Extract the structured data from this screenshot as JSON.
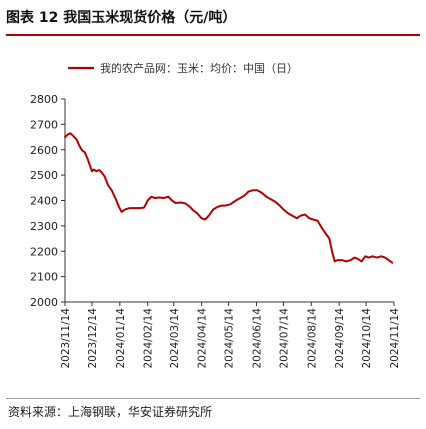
{
  "figure": {
    "title": "图表 12 我国玉米现货价格（元/吨）",
    "source": "资料来源：上海钢联，华安证券研究所"
  },
  "colors": {
    "line": "#b30000",
    "axis": "#333333",
    "text": "#222222"
  },
  "chart_data": {
    "type": "line",
    "title": "",
    "xlabel": "",
    "ylabel": "",
    "ylim": [
      2000,
      2800
    ],
    "yticks": [
      2000,
      2100,
      2200,
      2300,
      2400,
      2500,
      2600,
      2700,
      2800
    ],
    "grid": false,
    "legend_position": "top",
    "xticks": [
      "2023/11/14",
      "2023/12/14",
      "2024/01/14",
      "2024/02/14",
      "2024/03/14",
      "2024/04/14",
      "2024/05/14",
      "2024/06/14",
      "2024/07/14",
      "2024/08/14",
      "2024/09/14",
      "2024/10/14",
      "2024/11/14"
    ],
    "series": [
      {
        "name": "我的农产品网：玉米：均价：中国（日）",
        "points": [
          [
            "2023/11/14",
            2650
          ],
          [
            "2023/11/17",
            2660
          ],
          [
            "2023/11/20",
            2665
          ],
          [
            "2023/11/23",
            2655
          ],
          [
            "2023/11/27",
            2640
          ],
          [
            "2023/11/30",
            2615
          ],
          [
            "2023/12/03",
            2598
          ],
          [
            "2023/12/06",
            2590
          ],
          [
            "2023/12/09",
            2565
          ],
          [
            "2023/12/12",
            2535
          ],
          [
            "2023/12/14",
            2515
          ],
          [
            "2023/12/16",
            2522
          ],
          [
            "2023/12/19",
            2515
          ],
          [
            "2023/12/22",
            2520
          ],
          [
            "2023/12/25",
            2510
          ],
          [
            "2023/12/28",
            2495
          ],
          [
            "2024/01/01",
            2460
          ],
          [
            "2024/01/05",
            2440
          ],
          [
            "2024/01/09",
            2410
          ],
          [
            "2024/01/13",
            2375
          ],
          [
            "2024/01/16",
            2355
          ],
          [
            "2024/01/20",
            2365
          ],
          [
            "2024/01/25",
            2370
          ],
          [
            "2024/01/30",
            2370
          ],
          [
            "2024/02/05",
            2370
          ],
          [
            "2024/02/10",
            2372
          ],
          [
            "2024/02/14",
            2400
          ],
          [
            "2024/02/18",
            2415
          ],
          [
            "2024/02/22",
            2410
          ],
          [
            "2024/02/27",
            2412
          ],
          [
            "2024/03/03",
            2410
          ],
          [
            "2024/03/08",
            2415
          ],
          [
            "2024/03/12",
            2400
          ],
          [
            "2024/03/16",
            2390
          ],
          [
            "2024/03/22",
            2392
          ],
          [
            "2024/03/27",
            2388
          ],
          [
            "2024/04/01",
            2375
          ],
          [
            "2024/04/05",
            2360
          ],
          [
            "2024/04/09",
            2350
          ],
          [
            "2024/04/14",
            2330
          ],
          [
            "2024/04/18",
            2325
          ],
          [
            "2024/04/22",
            2340
          ],
          [
            "2024/04/27",
            2365
          ],
          [
            "2024/05/02",
            2375
          ],
          [
            "2024/05/06",
            2380
          ],
          [
            "2024/05/10",
            2380
          ],
          [
            "2024/05/16",
            2385
          ],
          [
            "2024/05/22",
            2400
          ],
          [
            "2024/05/27",
            2410
          ],
          [
            "2024/06/01",
            2420
          ],
          [
            "2024/06/05",
            2435
          ],
          [
            "2024/06/10",
            2440
          ],
          [
            "2024/06/15",
            2440
          ],
          [
            "2024/06/20",
            2430
          ],
          [
            "2024/06/25",
            2415
          ],
          [
            "2024/06/30",
            2405
          ],
          [
            "2024/07/05",
            2395
          ],
          [
            "2024/07/10",
            2380
          ],
          [
            "2024/07/14",
            2365
          ],
          [
            "2024/07/19",
            2350
          ],
          [
            "2024/07/24",
            2340
          ],
          [
            "2024/07/29",
            2330
          ],
          [
            "2024/08/02",
            2340
          ],
          [
            "2024/08/07",
            2345
          ],
          [
            "2024/08/12",
            2330
          ],
          [
            "2024/08/16",
            2325
          ],
          [
            "2024/08/21",
            2320
          ],
          [
            "2024/08/26",
            2290
          ],
          [
            "2024/08/30",
            2270
          ],
          [
            "2024/09/03",
            2250
          ],
          [
            "2024/09/06",
            2200
          ],
          [
            "2024/09/09",
            2160
          ],
          [
            "2024/09/12",
            2165
          ],
          [
            "2024/09/17",
            2165
          ],
          [
            "2024/09/22",
            2160
          ],
          [
            "2024/09/27",
            2165
          ],
          [
            "2024/10/01",
            2175
          ],
          [
            "2024/10/05",
            2170
          ],
          [
            "2024/10/09",
            2160
          ],
          [
            "2024/10/13",
            2180
          ],
          [
            "2024/10/17",
            2175
          ],
          [
            "2024/10/21",
            2180
          ],
          [
            "2024/10/26",
            2175
          ],
          [
            "2024/10/31",
            2180
          ],
          [
            "2024/11/04",
            2175
          ],
          [
            "2024/11/08",
            2165
          ],
          [
            "2024/11/12",
            2155
          ]
        ]
      }
    ]
  }
}
